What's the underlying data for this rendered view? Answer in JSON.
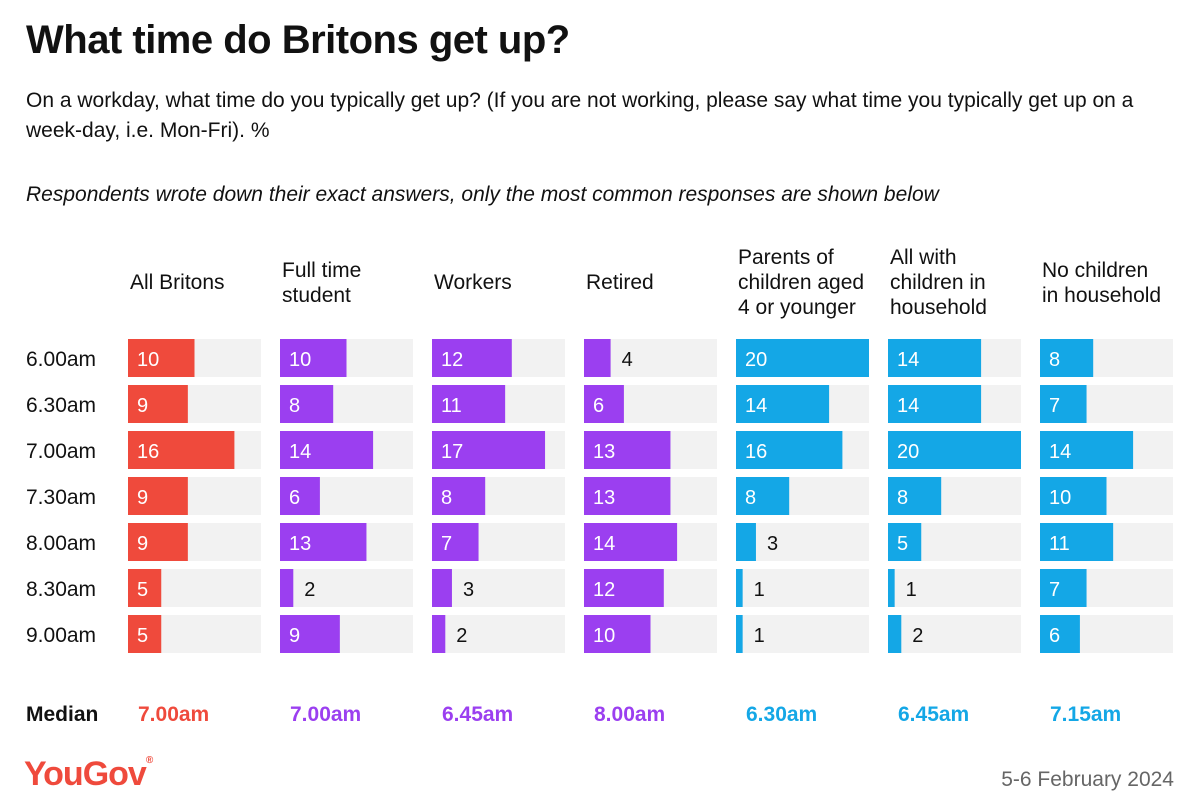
{
  "header": {
    "title": "What time do Britons get up?",
    "subtitle": "On a workday, what time do you typically get up? (If you are not working, please say what time you typically get up on a week-day, i.e. Mon-Fri). %",
    "note": "Respondents wrote down their exact answers, only the most common responses are shown below"
  },
  "chart_data": {
    "type": "bar",
    "categories": [
      "6.00am",
      "6.30am",
      "7.00am",
      "7.30am",
      "8.00am",
      "8.30am",
      "9.00am"
    ],
    "xlim": [
      0,
      20
    ],
    "series": [
      {
        "name": "All Britons",
        "color": "#ef4a3c",
        "values": [
          10,
          9,
          16,
          9,
          9,
          5,
          5
        ],
        "median": "7.00am"
      },
      {
        "name": "Full time student",
        "color": "#9b3ff0",
        "values": [
          10,
          8,
          14,
          6,
          13,
          2,
          9
        ],
        "median": "7.00am"
      },
      {
        "name": "Workers",
        "color": "#9b3ff0",
        "values": [
          12,
          11,
          17,
          8,
          7,
          3,
          2
        ],
        "median": "6.45am"
      },
      {
        "name": "Retired",
        "color": "#9b3ff0",
        "values": [
          4,
          6,
          13,
          13,
          14,
          12,
          10
        ],
        "median": "8.00am"
      },
      {
        "name": "Parents of children aged 4 or younger",
        "color": "#14a7e6",
        "values": [
          20,
          14,
          16,
          8,
          3,
          1,
          1
        ],
        "median": "6.30am"
      },
      {
        "name": "All with children in household",
        "color": "#14a7e6",
        "values": [
          14,
          14,
          20,
          8,
          5,
          1,
          2
        ],
        "median": "6.45am"
      },
      {
        "name": "No children in household",
        "color": "#14a7e6",
        "values": [
          8,
          7,
          14,
          10,
          11,
          7,
          6
        ],
        "median": "7.15am"
      }
    ],
    "median_label": "Median",
    "track_color": "#f2f2f2"
  },
  "footer": {
    "logo": "YouGov",
    "logo_mark": "®",
    "date": "5-6 February 2024"
  }
}
